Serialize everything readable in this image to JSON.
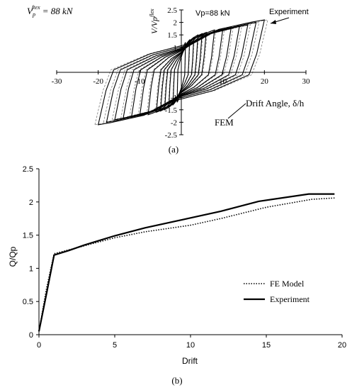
{
  "chart_data": [
    {
      "type": "line",
      "panel_label": "(a)",
      "xlabel": "Drift Angle, δ/h",
      "ylabel": "V/Vp",
      "ylabel_superscript": "flex",
      "annotation_left": "Vp flex = 88 kN",
      "annotation_left_main": "V",
      "annotation_left_sub": "p",
      "annotation_left_sup": "ftex",
      "annotation_left_rest": " = 88 kN",
      "annotation_center": "Vp=88 kN",
      "annotation_experiment": "Experiment",
      "annotation_fem": "FEM",
      "xlim": [
        -30,
        30
      ],
      "ylim": [
        -2.5,
        2.5
      ],
      "x_ticks": [
        "-30",
        "-20",
        "-10",
        "10",
        "20",
        "30"
      ],
      "y_ticks": [
        "2.5",
        "2",
        "1.5",
        "1",
        "-1",
        "-1.5",
        "-2",
        "-2.5"
      ],
      "drift_amplitudes": [
        1,
        2,
        3,
        4,
        5,
        6,
        8,
        10,
        12,
        14,
        16,
        18,
        20
      ],
      "peak_values": [
        1.2,
        1.3,
        1.4,
        1.5,
        1.55,
        1.6,
        1.7,
        1.75,
        1.8,
        1.85,
        1.9,
        2.0,
        2.1
      ],
      "series": [
        {
          "name": "Experiment",
          "style": "solid"
        },
        {
          "name": "FEM",
          "style": "dashed"
        }
      ]
    },
    {
      "type": "line",
      "panel_label": "(b)",
      "xlabel": "Drift",
      "ylabel": "Q/Qp",
      "xlim": [
        0,
        20
      ],
      "ylim": [
        0,
        2.5
      ],
      "x_ticks": [
        "0",
        "5",
        "10",
        "15",
        "20"
      ],
      "y_ticks": [
        "0",
        "0.5",
        "1",
        "1.5",
        "2",
        "2.5"
      ],
      "legend_position": "bottom-right",
      "series": [
        {
          "name": "FE Model",
          "style": "dotted",
          "x": [
            0,
            0.5,
            1,
            2,
            3,
            5,
            7,
            10,
            12,
            15,
            18,
            19.5
          ],
          "y": [
            0.05,
            0.7,
            1.22,
            1.28,
            1.34,
            1.46,
            1.55,
            1.65,
            1.75,
            1.92,
            2.04,
            2.06
          ]
        },
        {
          "name": "Experiment",
          "style": "solid",
          "x": [
            0,
            0.5,
            1,
            2,
            3,
            5,
            7,
            10,
            12,
            14.5,
            17.8,
            19.5
          ],
          "y": [
            0.05,
            0.62,
            1.2,
            1.27,
            1.35,
            1.49,
            1.61,
            1.76,
            1.86,
            2.01,
            2.12,
            2.12
          ]
        }
      ]
    }
  ]
}
